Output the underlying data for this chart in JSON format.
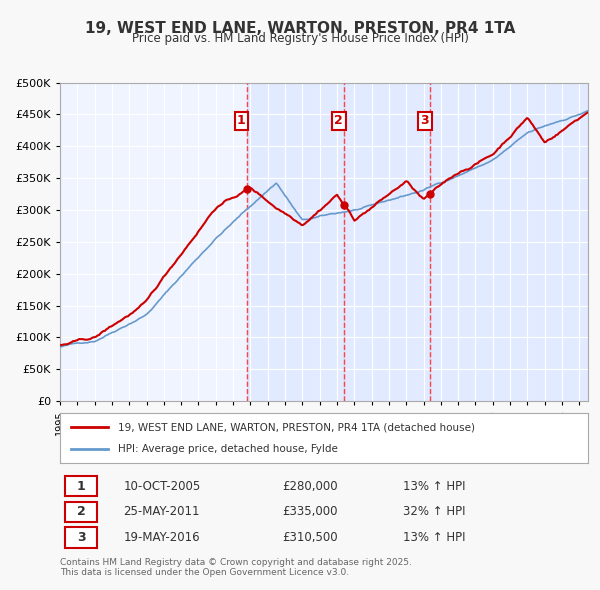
{
  "title": "19, WEST END LANE, WARTON, PRESTON, PR4 1TA",
  "subtitle": "Price paid vs. HM Land Registry's House Price Index (HPI)",
  "legend_line1": "19, WEST END LANE, WARTON, PRESTON, PR4 1TA (detached house)",
  "legend_line2": "HPI: Average price, detached house, Fylde",
  "transactions": [
    {
      "num": 1,
      "date": "10-OCT-2005",
      "price": 280000,
      "pct": "13%",
      "dir": "↑",
      "year": 2005.78
    },
    {
      "num": 2,
      "date": "25-MAY-2011",
      "price": 335000,
      "pct": "32%",
      "dir": "↑",
      "year": 2011.4
    },
    {
      "num": 3,
      "date": "19-MAY-2016",
      "price": 310500,
      "pct": "13%",
      "dir": "↑",
      "year": 2016.38
    }
  ],
  "price_color": "#cc0000",
  "hpi_color": "#6699cc",
  "background_color": "#f0f4ff",
  "plot_bg_color": "#f0f4ff",
  "grid_color": "#ffffff",
  "transaction_line_color": "#ff4444",
  "footer": "Contains HM Land Registry data © Crown copyright and database right 2025.\nThis data is licensed under the Open Government Licence v3.0.",
  "ylim": [
    0,
    500000
  ],
  "yticks": [
    0,
    50000,
    100000,
    150000,
    200000,
    250000,
    300000,
    350000,
    400000,
    450000,
    500000
  ],
  "xlim_start": 1995.0,
  "xlim_end": 2025.5
}
